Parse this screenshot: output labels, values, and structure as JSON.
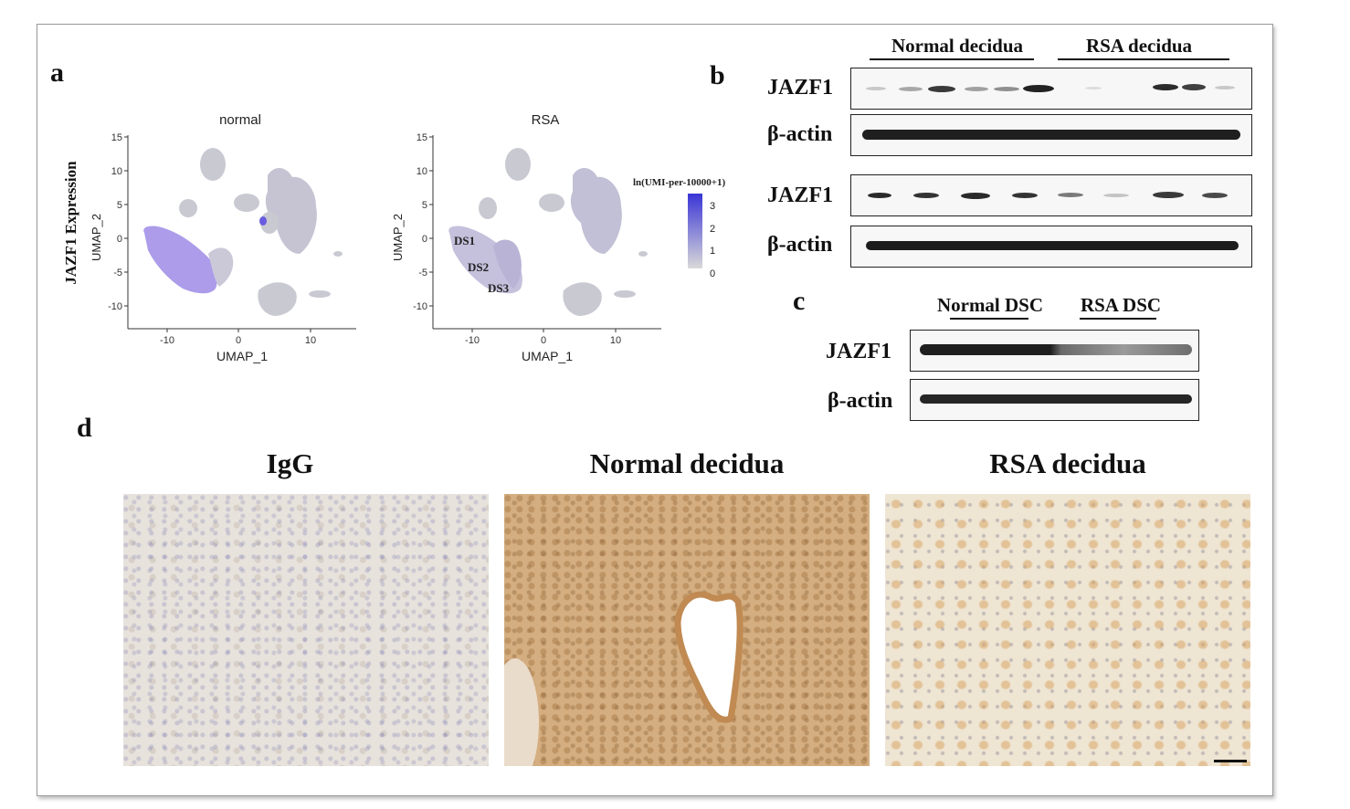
{
  "panels": {
    "a": "a",
    "b": "b",
    "c": "c",
    "d": "d"
  },
  "umap": {
    "ylabel_outer": "JAZF1 Expression",
    "plots": [
      {
        "title": "normal",
        "xlabel": "UMAP_1",
        "ylabel": "UMAP_2"
      },
      {
        "title": "RSA",
        "xlabel": "UMAP_1",
        "ylabel": "UMAP_2",
        "annotations": [
          "DS1",
          "DS2",
          "DS3"
        ]
      }
    ],
    "x_ticks": [
      "-10",
      "0",
      "10"
    ],
    "y_ticks": [
      "15",
      "10",
      "5",
      "0",
      "-5",
      "-10"
    ],
    "legend": {
      "title": "ln(UMI-per-10000+1)",
      "ticks": [
        "3",
        "2",
        "1",
        "0"
      ],
      "color_high": "#3a35d6",
      "color_low": "#d9d9d9"
    }
  },
  "blot_b": {
    "groups": [
      "Normal decidua",
      "RSA decidua"
    ],
    "rows": [
      "JAZF1",
      "β-actin",
      "JAZF1",
      "β-actin"
    ]
  },
  "blot_c": {
    "groups": [
      "Normal DSC",
      "RSA DSC"
    ],
    "rows": [
      "JAZF1",
      "β-actin"
    ]
  },
  "ihc": {
    "titles": [
      "IgG",
      "Normal decidua",
      "RSA decidua"
    ]
  },
  "colors": {
    "umap_cells": "#cfcfd6",
    "umap_expr": "#8a78e0",
    "ihc_igg_bg": "#e6e1dd",
    "ihc_normal_bg": "#d2ad80",
    "ihc_rsa_bg": "#ece1cd"
  }
}
